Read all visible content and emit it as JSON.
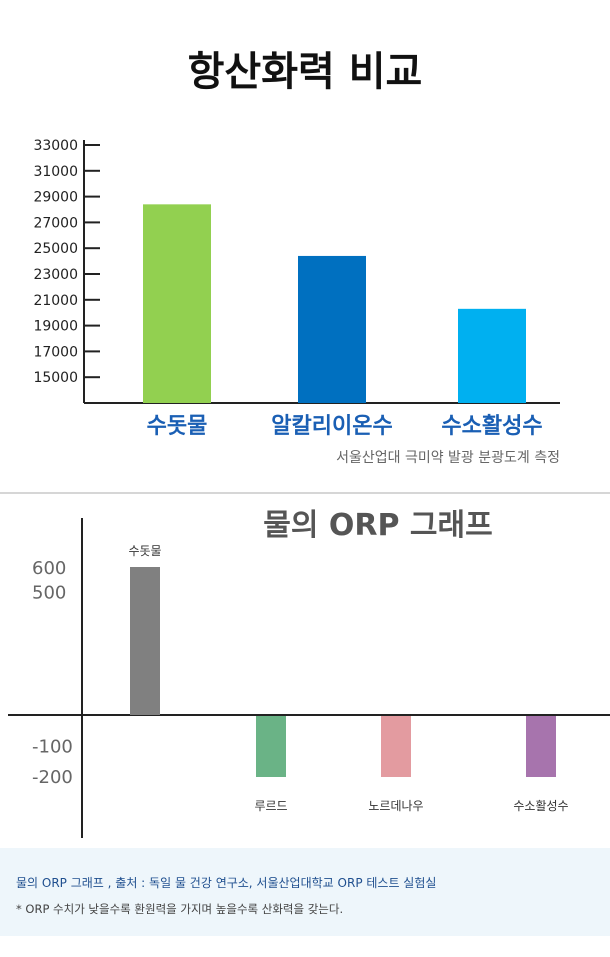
{
  "chart_data": [
    {
      "type": "bar",
      "title": "항산화력 비교",
      "caption": "서울산업대 극미약 발광 분광도계 측정",
      "categories": [
        "수돗물",
        "알칼리이온수",
        "수소활성수"
      ],
      "values": [
        28400,
        24400,
        20300
      ],
      "colors": [
        "#92d050",
        "#0070c0",
        "#00b0f0"
      ],
      "ylim": [
        13000,
        33000
      ],
      "yticks": [
        "33000",
        "31000",
        "29000",
        "27000",
        "25000",
        "23000",
        "21000",
        "19000",
        "17000",
        "15000"
      ],
      "ytick_values": [
        33000,
        31000,
        29000,
        27000,
        25000,
        23000,
        21000,
        19000,
        17000,
        15000
      ],
      "grid": false
    },
    {
      "type": "bar",
      "title": "물의 ORP 그래프",
      "categories": [
        "수돗물",
        "루르드",
        "노르데나우",
        "수소활성수"
      ],
      "values": [
        600,
        -200,
        -200,
        -200
      ],
      "colors": [
        "#808080",
        "#6ab386",
        "#e39ba0",
        "#a774ad"
      ],
      "yticks": [
        "600",
        "500",
        "-100",
        "-200"
      ],
      "ytick_values": [
        600,
        500,
        -100,
        -200
      ],
      "grid": false
    }
  ],
  "note": {
    "line1": "물의 ORP 그래프 , 출처 : 독일 물 건강 연구소, 서울산업대학교 ORP 테스트 실험실",
    "line2": "* ORP 수치가 낮을수록 환원력을 가지며 높을수록 산화력을 갖는다."
  }
}
